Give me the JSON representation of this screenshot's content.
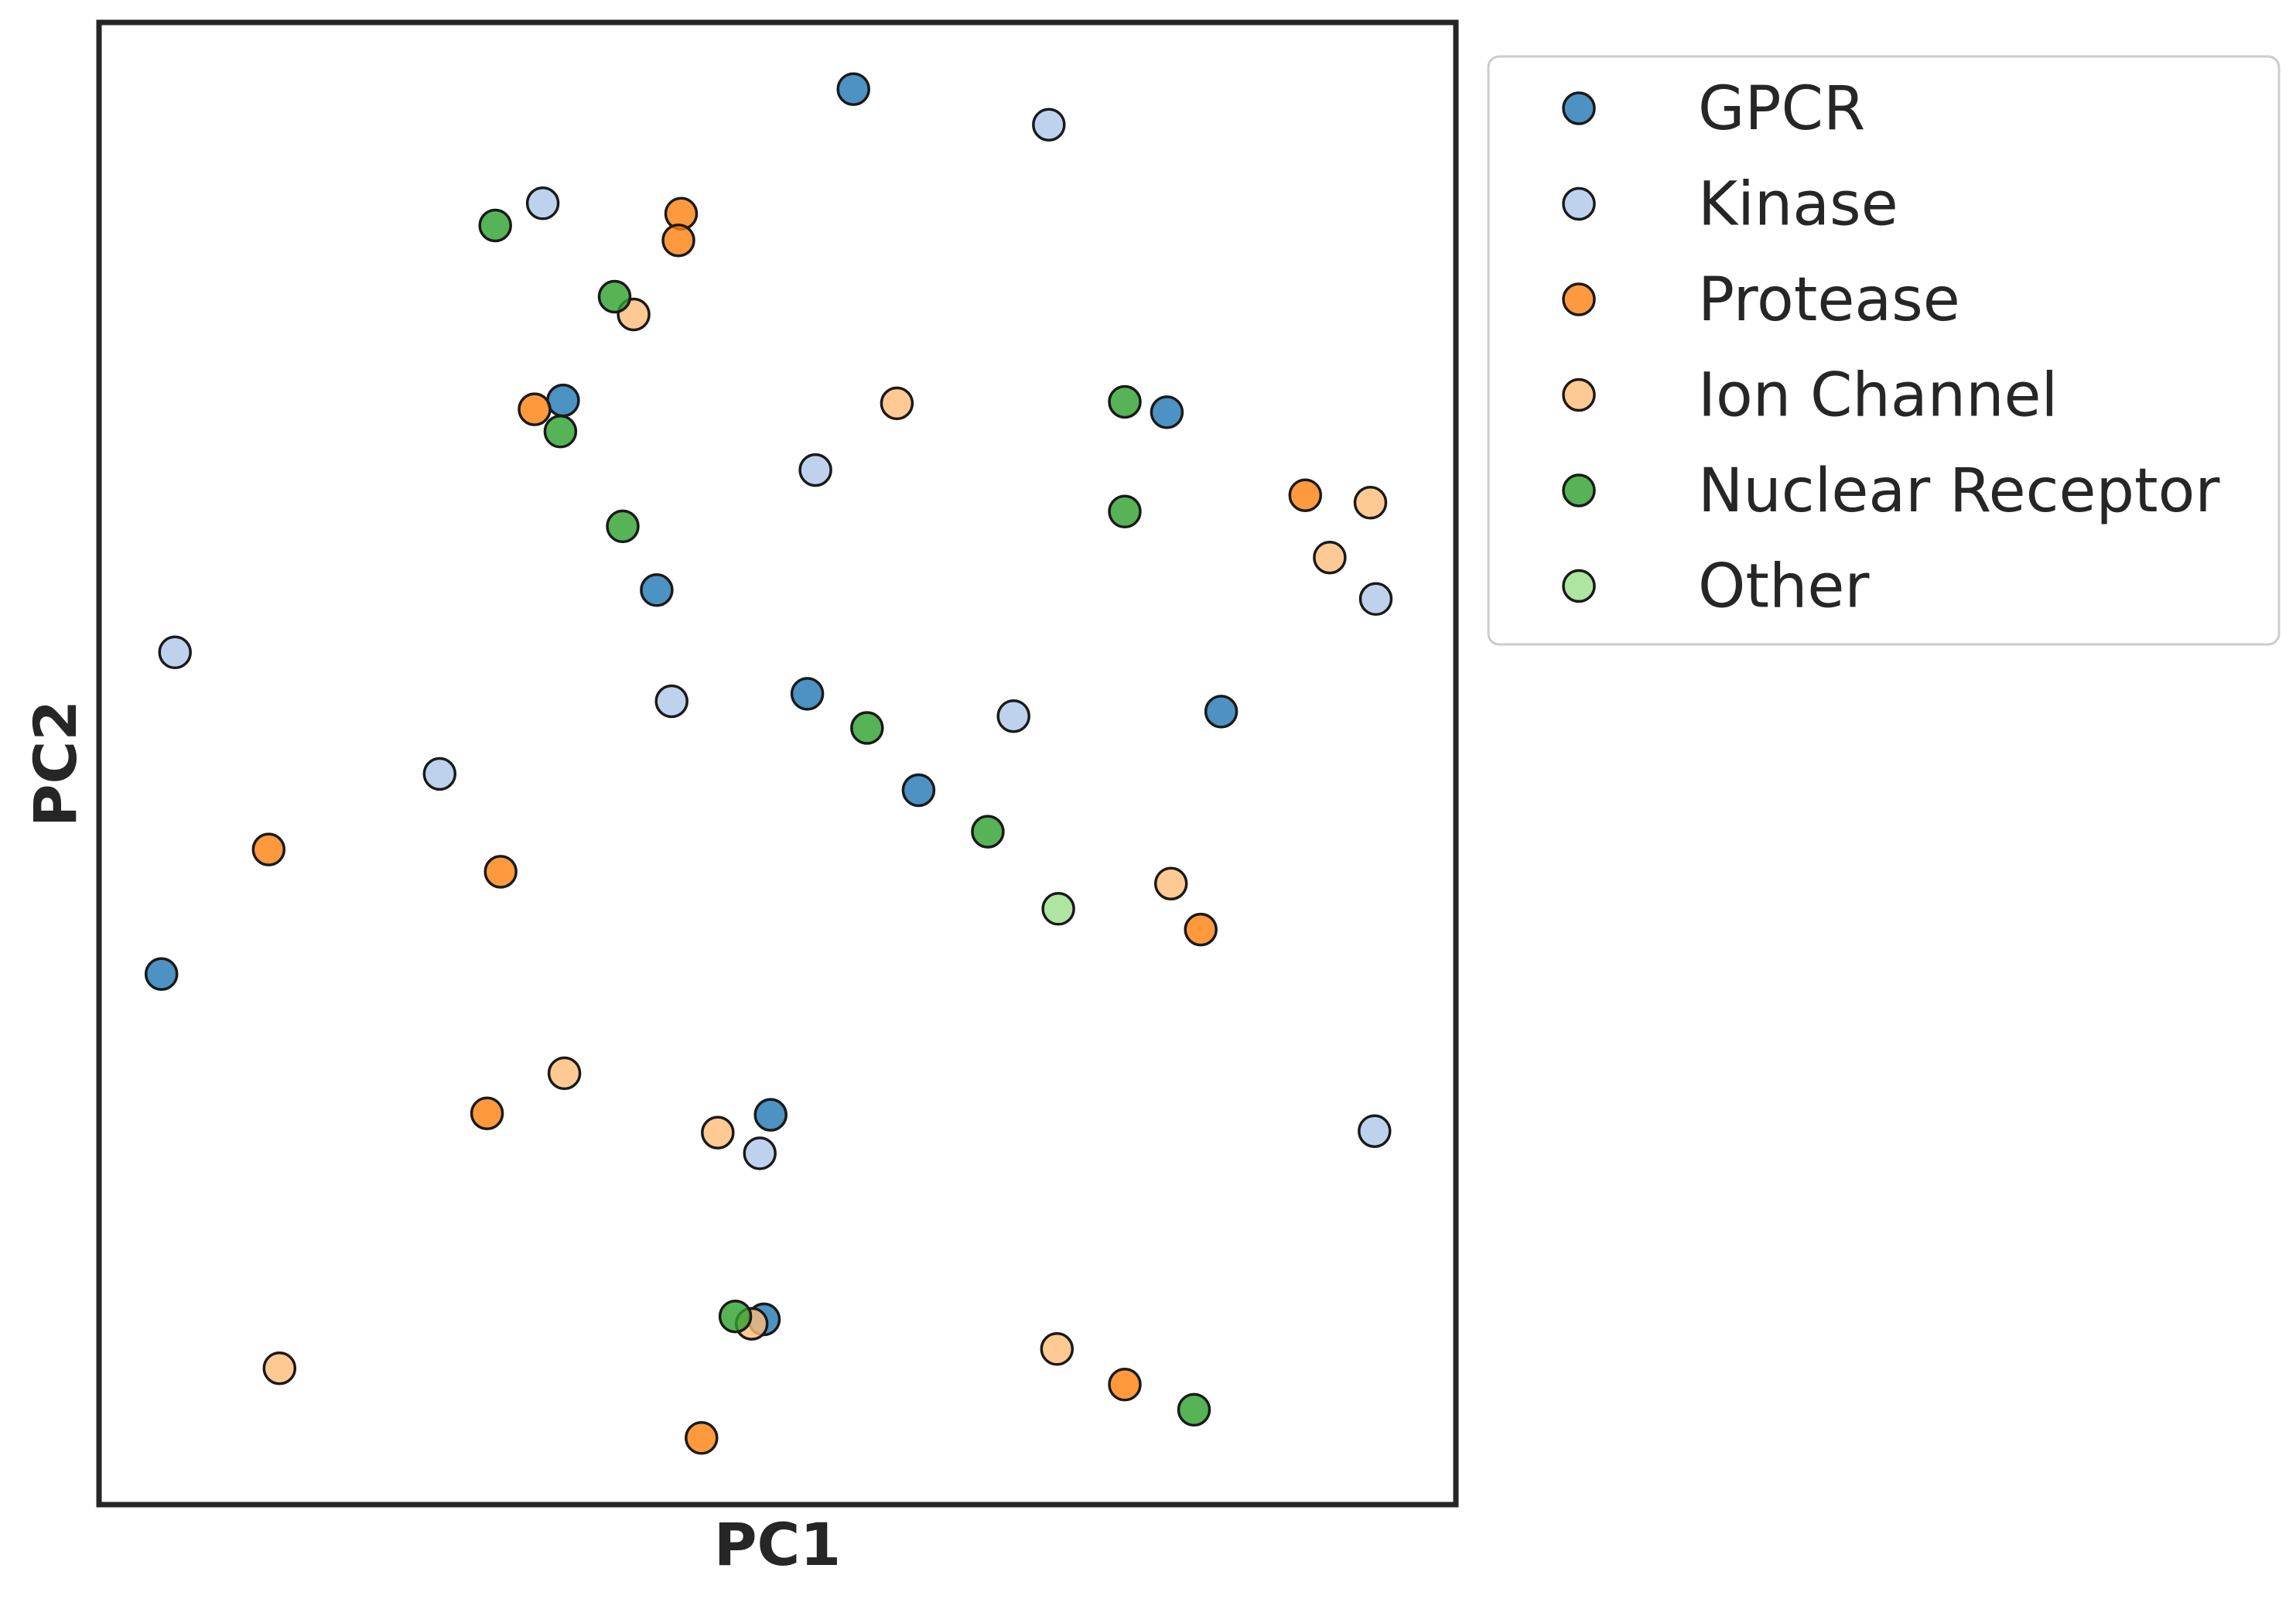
{
  "chart_data": {
    "type": "scatter",
    "title": "",
    "xlabel": "PC1",
    "ylabel": "PC2",
    "xlim": [
      0,
      100
    ],
    "ylim": [
      0,
      100
    ],
    "grid": false,
    "legend": {
      "placement": "outside-top-right"
    },
    "series": [
      {
        "name": "GPCR",
        "color": "#1f77b4",
        "points": [
          {
            "x": 55.6,
            "y": 95.5
          },
          {
            "x": 34.2,
            "y": 74.5
          },
          {
            "x": 78.7,
            "y": 73.7
          },
          {
            "x": 41.1,
            "y": 61.7
          },
          {
            "x": 52.2,
            "y": 54.7
          },
          {
            "x": 82.7,
            "y": 53.5
          },
          {
            "x": 60.4,
            "y": 48.2
          },
          {
            "x": 4.6,
            "y": 35.8
          },
          {
            "x": 49.5,
            "y": 26.3
          },
          {
            "x": 49.0,
            "y": 12.5
          }
        ]
      },
      {
        "name": "Kinase",
        "color": "#aec7e8",
        "points": [
          {
            "x": 70.0,
            "y": 93.1
          },
          {
            "x": 32.7,
            "y": 87.8
          },
          {
            "x": 52.8,
            "y": 69.8
          },
          {
            "x": 94.1,
            "y": 61.1
          },
          {
            "x": 5.6,
            "y": 57.5
          },
          {
            "x": 42.2,
            "y": 54.2
          },
          {
            "x": 67.4,
            "y": 53.2
          },
          {
            "x": 25.1,
            "y": 49.3
          },
          {
            "x": 48.7,
            "y": 23.7
          },
          {
            "x": 94.0,
            "y": 25.2
          }
        ]
      },
      {
        "name": "Protease",
        "color": "#ff7f0e",
        "points": [
          {
            "x": 42.9,
            "y": 87.1
          },
          {
            "x": 42.7,
            "y": 85.3
          },
          {
            "x": 32.1,
            "y": 73.9
          },
          {
            "x": 88.9,
            "y": 68.1
          },
          {
            "x": 12.5,
            "y": 44.2
          },
          {
            "x": 29.6,
            "y": 42.7
          },
          {
            "x": 81.2,
            "y": 38.8
          },
          {
            "x": 28.6,
            "y": 26.4
          },
          {
            "x": 75.6,
            "y": 8.1
          },
          {
            "x": 44.4,
            "y": 4.5
          }
        ]
      },
      {
        "name": "Ion Channel",
        "color": "#ffbb78",
        "points": [
          {
            "x": 39.4,
            "y": 80.3
          },
          {
            "x": 58.8,
            "y": 74.3
          },
          {
            "x": 93.7,
            "y": 67.6
          },
          {
            "x": 90.7,
            "y": 63.9
          },
          {
            "x": 79.0,
            "y": 41.9
          },
          {
            "x": 34.3,
            "y": 29.1
          },
          {
            "x": 45.6,
            "y": 25.1
          },
          {
            "x": 48.1,
            "y": 12.2
          },
          {
            "x": 70.6,
            "y": 10.5
          },
          {
            "x": 13.3,
            "y": 9.2
          }
        ]
      },
      {
        "name": "Nuclear Receptor",
        "color": "#2ca02c",
        "points": [
          {
            "x": 29.2,
            "y": 86.3
          },
          {
            "x": 38.0,
            "y": 81.5
          },
          {
            "x": 75.6,
            "y": 74.4
          },
          {
            "x": 34.0,
            "y": 72.4
          },
          {
            "x": 75.6,
            "y": 67.0
          },
          {
            "x": 38.6,
            "y": 66.0
          },
          {
            "x": 56.6,
            "y": 52.4
          },
          {
            "x": 65.5,
            "y": 45.4
          },
          {
            "x": 46.9,
            "y": 12.7
          },
          {
            "x": 80.7,
            "y": 6.4
          }
        ]
      },
      {
        "name": "Other",
        "color": "#98df8a",
        "points": [
          {
            "x": 70.7,
            "y": 40.2
          }
        ]
      }
    ]
  }
}
